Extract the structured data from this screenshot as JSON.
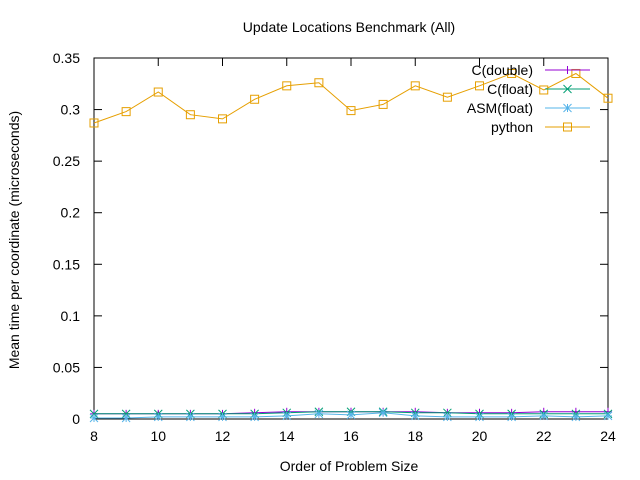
{
  "chart_data": {
    "type": "line",
    "title": "Update Locations Benchmark (All)",
    "xlabel": "Order of Problem Size",
    "ylabel": "Mean time per coordinate (microseconds)",
    "xlim": [
      8,
      24
    ],
    "ylim": [
      0,
      0.35
    ],
    "x_ticks": [
      8,
      10,
      12,
      14,
      16,
      18,
      20,
      22,
      24
    ],
    "x_tick_labels": [
      "8",
      "10",
      "12",
      "14",
      "16",
      "18",
      "20",
      "22",
      "24"
    ],
    "y_ticks": [
      0,
      0.05,
      0.1,
      0.15,
      0.2,
      0.25,
      0.3,
      0.35
    ],
    "y_tick_labels": [
      "0",
      "0.05",
      "0.1",
      "0.15",
      "0.2",
      "0.25",
      "0.3",
      "0.35"
    ],
    "grid": false,
    "legend_position": "top-right",
    "x": [
      8,
      9,
      10,
      11,
      12,
      13,
      14,
      15,
      16,
      17,
      18,
      19,
      20,
      21,
      22,
      23,
      24
    ],
    "series": [
      {
        "name": "C(double)",
        "color": "#9400d3",
        "marker": "plus",
        "values": [
          0.005,
          0.005,
          0.005,
          0.005,
          0.005,
          0.006,
          0.007,
          0.007,
          0.007,
          0.007,
          0.007,
          0.006,
          0.006,
          0.006,
          0.007,
          0.007,
          0.007
        ]
      },
      {
        "name": "C(float)",
        "color": "#009e73",
        "marker": "x",
        "values": [
          0.005,
          0.005,
          0.005,
          0.005,
          0.005,
          0.005,
          0.006,
          0.007,
          0.007,
          0.007,
          0.006,
          0.006,
          0.005,
          0.005,
          0.005,
          0.005,
          0.005
        ]
      },
      {
        "name": "ASM(float)",
        "color": "#56b4e9",
        "marker": "star",
        "values": [
          0.001,
          0.001,
          0.002,
          0.002,
          0.002,
          0.002,
          0.003,
          0.005,
          0.004,
          0.006,
          0.003,
          0.002,
          0.002,
          0.002,
          0.003,
          0.002,
          0.003
        ]
      },
      {
        "name": "python",
        "color": "#e69f00",
        "marker": "square",
        "values": [
          0.287,
          0.298,
          0.317,
          0.295,
          0.291,
          0.31,
          0.323,
          0.326,
          0.299,
          0.305,
          0.323,
          0.312,
          0.323,
          0.335,
          0.319,
          0.335,
          0.311
        ]
      }
    ]
  }
}
